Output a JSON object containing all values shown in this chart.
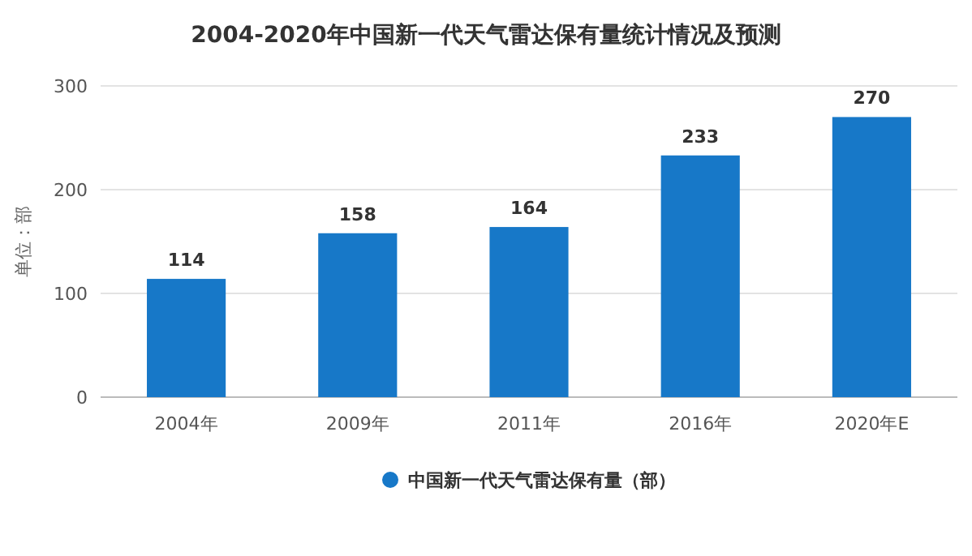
{
  "chart_data": {
    "type": "bar",
    "title": "2004-2020年中国新一代天气雷达保有量统计情况及预测",
    "ylabel": "单位：部",
    "categories": [
      "2004年",
      "2009年",
      "2011年",
      "2016年",
      "2020年E"
    ],
    "series": [
      {
        "name": "中国新一代天气雷达保有量（部）",
        "color": "#1778c8",
        "values": [
          114,
          158,
          164,
          233,
          270
        ]
      }
    ],
    "ylim": [
      0,
      300
    ],
    "yticks": [
      0,
      100,
      200,
      300
    ],
    "grid": "y",
    "legend": "bottom",
    "data_labels": true
  }
}
